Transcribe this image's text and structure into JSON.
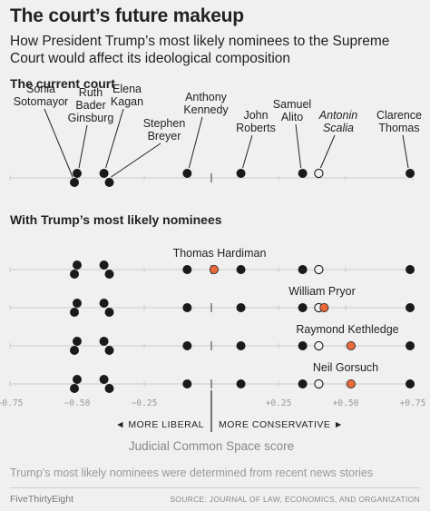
{
  "header": {
    "title": "The court’s future makeup",
    "subtitle": "How President Trump’s most likely nominees to the Supreme Court would affect its ideological composition"
  },
  "sections": {
    "current": "The current court",
    "nominees": "With Trump’s most likely nominees"
  },
  "footer": {
    "note": "Trump’s most likely nominees were determined from recent news stories",
    "brand": "FiveThirtyEight",
    "source": "SOURCE: JOURNAL OF LAW, ECONOMICS, AND ORGANIZATION"
  },
  "colors": {
    "accent": "#e9693a",
    "dot": "#1a1a1a",
    "axis": "#cccccc",
    "text": "#222222"
  },
  "chart_data": {
    "type": "scatter",
    "xlabel": "Judicial Common Space score",
    "xlim": [
      -0.75,
      0.75
    ],
    "ticks": [
      {
        "value": -0.75,
        "label": "−0.75"
      },
      {
        "value": -0.5,
        "label": "−0.50"
      },
      {
        "value": -0.25,
        "label": "−0.25"
      },
      {
        "value": 0.25,
        "label": "+0.25"
      },
      {
        "value": 0.5,
        "label": "+0.50"
      },
      {
        "value": 0.75,
        "label": "+0.75"
      }
    ],
    "direction_labels": {
      "left": "◄ MORE LIBERAL",
      "right": "MORE CONSERVATIVE ►"
    },
    "current_court": [
      {
        "name": "Sonia Sotomayor",
        "lines": [
          "Sonia",
          "Sotomayor"
        ],
        "x": -0.51,
        "row": 1,
        "style": "filled"
      },
      {
        "name": "Ruth Bader Ginsburg",
        "lines": [
          "Ruth",
          "Bader",
          "Ginsburg"
        ],
        "x": -0.5,
        "row": 0,
        "style": "filled"
      },
      {
        "name": "Elena Kagan",
        "lines": [
          "Elena",
          "Kagan"
        ],
        "x": -0.4,
        "row": 0,
        "style": "filled"
      },
      {
        "name": "Stephen Breyer",
        "lines": [
          "Stephen",
          "Breyer"
        ],
        "x": -0.38,
        "row": 1,
        "style": "filled"
      },
      {
        "name": "Anthony Kennedy",
        "lines": [
          "Anthony",
          "Kennedy"
        ],
        "x": -0.09,
        "row": 0,
        "style": "filled"
      },
      {
        "name": "John Roberts",
        "lines": [
          "John",
          "Roberts"
        ],
        "x": 0.11,
        "row": 0,
        "style": "filled"
      },
      {
        "name": "Samuel Alito",
        "lines": [
          "Samuel",
          "Alito"
        ],
        "x": 0.34,
        "row": 0,
        "style": "filled"
      },
      {
        "name": "Antonin Scalia",
        "lines": [
          "Antonin",
          "Scalia"
        ],
        "x": 0.4,
        "row": 0,
        "style": "open"
      },
      {
        "name": "Clarence Thomas",
        "lines": [
          "Clarence",
          "Thomas"
        ],
        "x": 0.74,
        "row": 0,
        "style": "filled"
      }
    ],
    "nominees": [
      {
        "name": "Thomas Hardiman",
        "x": 0.01
      },
      {
        "name": "William Pryor",
        "x": 0.42
      },
      {
        "name": "Raymond Kethledge",
        "x": 0.52
      },
      {
        "name": "Neil Gorsuch",
        "x": 0.52
      }
    ]
  }
}
